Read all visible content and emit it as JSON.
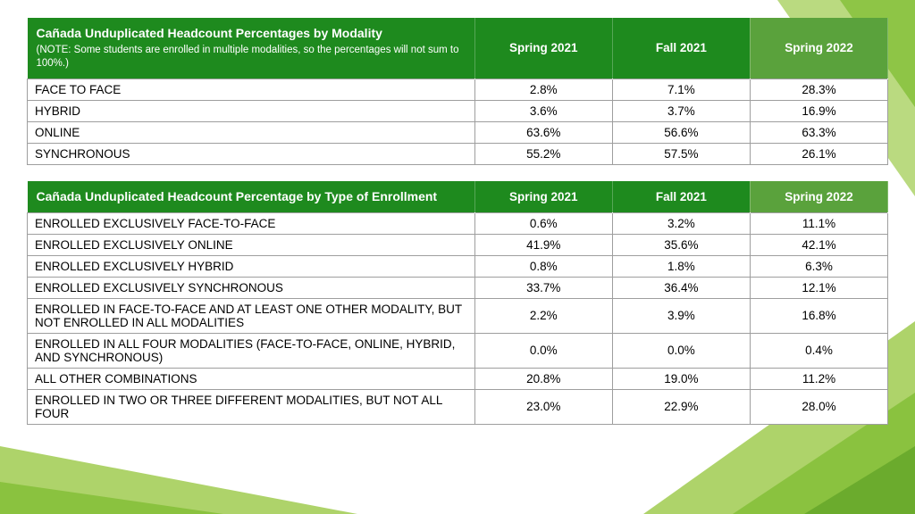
{
  "colors": {
    "header_dark": "#1e8a1e",
    "header_alt": "#5aa23c",
    "border": "#9e9e9e",
    "bg_light": "#aed36a",
    "bg_mid": "#8ac23f",
    "bg_dark": "#6bab2d"
  },
  "table1": {
    "title": "Cañada Unduplicated Headcount Percentages by Modality",
    "note": "(NOTE: Some students are enrolled in multiple modalities, so the percentages will not sum to 100%.)",
    "columns": [
      "Spring 2021",
      "Fall 2021",
      "Spring 2022"
    ],
    "rows": [
      {
        "label": "FACE TO FACE",
        "values": [
          "2.8%",
          "7.1%",
          "28.3%"
        ]
      },
      {
        "label": "HYBRID",
        "values": [
          "3.6%",
          "3.7%",
          "16.9%"
        ]
      },
      {
        "label": "ONLINE",
        "values": [
          "63.6%",
          "56.6%",
          "63.3%"
        ]
      },
      {
        "label": "SYNCHRONOUS",
        "values": [
          "55.2%",
          "57.5%",
          "26.1%"
        ]
      }
    ]
  },
  "table2": {
    "title": "Cañada Unduplicated Headcount Percentage by Type of Enrollment",
    "columns": [
      "Spring 2021",
      "Fall 2021",
      "Spring 2022"
    ],
    "rows": [
      {
        "label": "ENROLLED EXCLUSIVELY FACE-TO-FACE",
        "values": [
          "0.6%",
          "3.2%",
          "11.1%"
        ]
      },
      {
        "label": "ENROLLED EXCLUSIVELY ONLINE",
        "values": [
          "41.9%",
          "35.6%",
          "42.1%"
        ]
      },
      {
        "label": "ENROLLED EXCLUSIVELY HYBRID",
        "values": [
          "0.8%",
          "1.8%",
          "6.3%"
        ]
      },
      {
        "label": "ENROLLED EXCLUSIVELY SYNCHRONOUS",
        "values": [
          "33.7%",
          "36.4%",
          "12.1%"
        ]
      },
      {
        "label": "ENROLLED IN FACE-TO-FACE AND AT LEAST ONE OTHER MODALITY, BUT NOT ENROLLED IN ALL MODALITIES",
        "values": [
          "2.2%",
          "3.9%",
          "16.8%"
        ]
      },
      {
        "label": "ENROLLED IN ALL FOUR MODALITIES (FACE-TO-FACE, ONLINE, HYBRID, AND SYNCHRONOUS)",
        "values": [
          "0.0%",
          "0.0%",
          "0.4%"
        ]
      },
      {
        "label": "ALL OTHER COMBINATIONS",
        "values": [
          "20.8%",
          "19.0%",
          "11.2%"
        ]
      },
      {
        "label": "ENROLLED IN TWO OR THREE DIFFERENT MODALITIES, BUT NOT ALL FOUR",
        "values": [
          "23.0%",
          "22.9%",
          "28.0%"
        ]
      }
    ]
  }
}
